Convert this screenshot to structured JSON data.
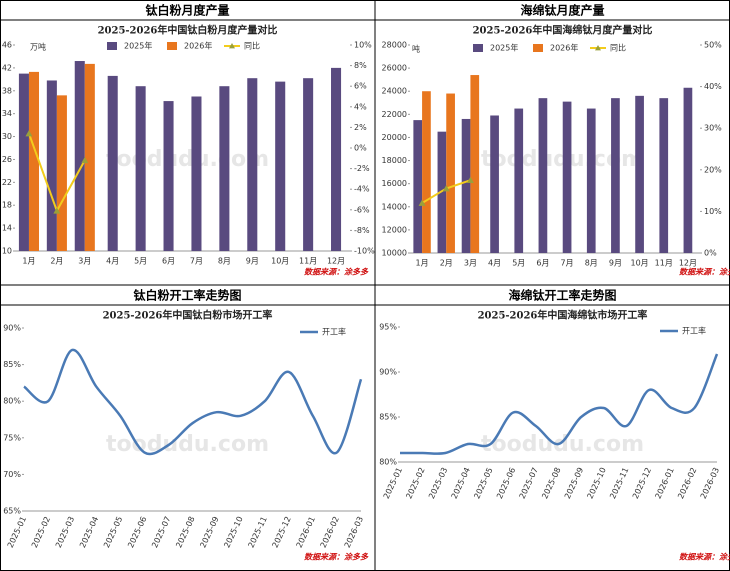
{
  "watermark": "toodudu.com",
  "chart_data": [
    {
      "type": "bar",
      "panel_title": "钛白粉月度产量",
      "title": "2025-2026年中国钛白粉月度产量对比",
      "unit": "万吨",
      "source": "数据来源：涂多多",
      "categories": [
        "1月",
        "2月",
        "3月",
        "4月",
        "5月",
        "6月",
        "7月",
        "8月",
        "9月",
        "10月",
        "11月",
        "12月"
      ],
      "series": [
        {
          "name": "2025年",
          "color": "#594a7f",
          "values": [
            41,
            39.8,
            43.2,
            40.6,
            38.8,
            36.2,
            37,
            38.8,
            40.2,
            39.6,
            40.2,
            42
          ]
        },
        {
          "name": "2026年",
          "color": "#e8761e",
          "values": [
            41.3,
            37.2,
            42.7,
            null,
            null,
            null,
            null,
            null,
            null,
            null,
            null,
            null
          ]
        },
        {
          "name": "同比",
          "color": "#f2cc1c",
          "type": "line",
          "axis": "y2",
          "values": [
            1.4,
            -6.1,
            -1.2,
            null,
            null,
            null,
            null,
            null,
            null,
            null,
            null,
            null
          ]
        }
      ],
      "ylim": [
        10,
        46
      ],
      "yticks": [
        10,
        14,
        18,
        22,
        26,
        30,
        34,
        38,
        42,
        46
      ],
      "y2lim": [
        -10,
        10
      ],
      "y2ticks": [
        {
          "value": -10,
          "label": "-10%"
        },
        {
          "value": -8,
          "label": "-8%"
        },
        {
          "value": -6,
          "label": "-6%"
        },
        {
          "value": -4,
          "label": "-4%"
        },
        {
          "value": -2,
          "label": "-2%"
        },
        {
          "value": 0,
          "label": "0%"
        },
        {
          "value": 2,
          "label": "2%"
        },
        {
          "value": 4,
          "label": "4%"
        },
        {
          "value": 6,
          "label": "6%"
        },
        {
          "value": 8,
          "label": "8%"
        },
        {
          "value": 10,
          "label": "10%"
        }
      ]
    },
    {
      "type": "bar",
      "panel_title": "海绵钛月度产量",
      "title": "2025-2026年中国海绵钛月度产量对比",
      "unit": "吨",
      "source": "数据来源：涂多多",
      "categories": [
        "1月",
        "2月",
        "3月",
        "4月",
        "5月",
        "6月",
        "7月",
        "8月",
        "9月",
        "10月",
        "11月",
        "12月"
      ],
      "series": [
        {
          "name": "2025年",
          "color": "#594a7f",
          "values": [
            21500,
            20500,
            21600,
            21900,
            22500,
            23400,
            23100,
            22500,
            23400,
            23600,
            23400,
            24300
          ]
        },
        {
          "name": "2026年",
          "color": "#e8761e",
          "values": [
            24000,
            23800,
            25400,
            null,
            null,
            null,
            null,
            null,
            null,
            null,
            null,
            null
          ]
        },
        {
          "name": "同比",
          "color": "#f2cc1c",
          "type": "line",
          "axis": "y2",
          "values": [
            12,
            15.5,
            17.5,
            null,
            null,
            null,
            null,
            null,
            null,
            null,
            null,
            null
          ]
        }
      ],
      "ylim": [
        10000,
        28000
      ],
      "yticks": [
        10000,
        12000,
        14000,
        16000,
        18000,
        20000,
        22000,
        24000,
        26000,
        28000
      ],
      "y2lim": [
        0,
        50
      ],
      "y2ticks": [
        {
          "value": 0,
          "label": "0%"
        },
        {
          "value": 10,
          "label": "10%"
        },
        {
          "value": 20,
          "label": "20%"
        },
        {
          "value": 30,
          "label": "30%"
        },
        {
          "value": 40,
          "label": "40%"
        },
        {
          "value": 50,
          "label": "50%"
        }
      ]
    },
    {
      "type": "line",
      "panel_title": "钛白粉开工率走势图",
      "title": "2025-2026年中国钛白粉市场开工率",
      "source": "数据来源：涂多多",
      "categories": [
        "2025-01",
        "2025-02",
        "2025-03",
        "2025-04",
        "2025-05",
        "2025-06",
        "2025-07",
        "2025-08",
        "2025-09",
        "2025-10",
        "2025-11",
        "2025-12",
        "2026-01",
        "2026-02",
        "2026-03"
      ],
      "series": [
        {
          "name": "开工率",
          "color": "#4a7ab5",
          "values": [
            82,
            80,
            87,
            82,
            78,
            73,
            74,
            77,
            78.5,
            78,
            80,
            84,
            78,
            73,
            83
          ]
        }
      ],
      "ylim": [
        65,
        90
      ],
      "yticks": [
        {
          "value": 65,
          "label": "65%"
        },
        {
          "value": 70,
          "label": "70%"
        },
        {
          "value": 75,
          "label": "75%"
        },
        {
          "value": 80,
          "label": "80%"
        },
        {
          "value": 85,
          "label": "85%"
        },
        {
          "value": 90,
          "label": "90%"
        }
      ]
    },
    {
      "type": "line",
      "panel_title": "海绵钛开工率走势图",
      "title": "2025-2026年中国海绵钛市场开工率",
      "source": "数据来源：涂多多",
      "categories": [
        "2025-01",
        "2025-02",
        "2025-03",
        "2025-04",
        "2025-05",
        "2025-06",
        "2025-07",
        "2025-08",
        "2025-09",
        "2025-10",
        "2025-11",
        "2025-12",
        "2026-01",
        "2026-02",
        "2026-03"
      ],
      "series": [
        {
          "name": "开工率",
          "color": "#4a7ab5",
          "values": [
            81,
            81,
            81,
            82,
            82,
            85.5,
            84,
            82,
            85,
            86,
            84,
            88,
            86,
            86,
            92
          ]
        }
      ],
      "ylim": [
        80,
        95
      ],
      "yticks": [
        {
          "value": 80,
          "label": "80%"
        },
        {
          "value": 85,
          "label": "85%"
        },
        {
          "value": 90,
          "label": "90%"
        },
        {
          "value": 95,
          "label": "95%"
        }
      ]
    }
  ]
}
